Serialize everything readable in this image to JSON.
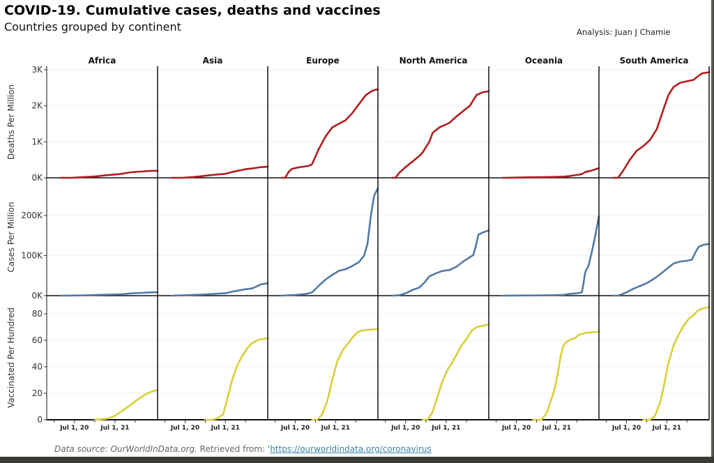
{
  "header": {
    "title": "COVID-19. Cumulative cases, deaths and vaccines",
    "subtitle": "Countries grouped by continent",
    "analysis": "Analysis: Juan J Chamie"
  },
  "footer": {
    "source_text": "Data source: OurWorldInData.org.",
    "retrieved_text": " Retrieved from: '",
    "link_text": "https://ourworldindata.org/coronavirus"
  },
  "chart_data": {
    "type": "line",
    "title": "COVID-19. Cumulative cases, deaths and vaccines",
    "subtitle": "Countries grouped by continent",
    "facets": [
      "Africa",
      "Asia",
      "Europe",
      "North America",
      "Oceania",
      "South America"
    ],
    "x_unit": "months since Jan 1, 2020",
    "x_range": [
      -2.2,
      30.6
    ],
    "x_ticks": [
      {
        "value": 6,
        "label": "Jul 1, 20"
      },
      {
        "value": 18,
        "label": "Jul 1, 21"
      }
    ],
    "x_minor_ticks": [
      0,
      12,
      24
    ],
    "rows": [
      {
        "metric": "deaths",
        "ylabel": "Deaths Per Million",
        "color": "#b01c1c",
        "ylim": [
          0,
          3100
        ],
        "y_ticks": [
          {
            "value": 0,
            "label": "0K"
          },
          {
            "value": 1000,
            "label": "1K"
          },
          {
            "value": 2000,
            "label": "2K"
          },
          {
            "value": 3000,
            "label": "3K"
          }
        ],
        "series": {
          "Africa": [
            [
              2,
              0
            ],
            [
              5,
              0
            ],
            [
              8,
              15
            ],
            [
              11,
              30
            ],
            [
              13,
              45
            ],
            [
              15,
              70
            ],
            [
              18,
              90
            ],
            [
              20,
              110
            ],
            [
              22,
              145
            ],
            [
              24,
              165
            ],
            [
              26,
              175
            ],
            [
              28,
              190
            ],
            [
              30.6,
              195
            ]
          ],
          "Asia": [
            [
              2,
              0
            ],
            [
              5,
              0
            ],
            [
              8,
              20
            ],
            [
              11,
              45
            ],
            [
              13,
              70
            ],
            [
              16,
              95
            ],
            [
              18,
              110
            ],
            [
              20,
              160
            ],
            [
              22,
              200
            ],
            [
              24,
              240
            ],
            [
              26,
              260
            ],
            [
              28,
              290
            ],
            [
              30.6,
              310
            ]
          ],
          "Europe": [
            [
              2,
              0
            ],
            [
              3,
              0
            ],
            [
              4,
              160
            ],
            [
              5,
              250
            ],
            [
              7,
              290
            ],
            [
              10,
              330
            ],
            [
              11,
              380
            ],
            [
              13,
              800
            ],
            [
              15,
              1150
            ],
            [
              17,
              1400
            ],
            [
              19,
              1500
            ],
            [
              21,
              1600
            ],
            [
              23,
              1800
            ],
            [
              25,
              2050
            ],
            [
              27,
              2300
            ],
            [
              29,
              2420
            ],
            [
              30.6,
              2460
            ]
          ],
          "North America": [
            [
              2,
              0
            ],
            [
              3,
              0
            ],
            [
              4,
              130
            ],
            [
              6,
              300
            ],
            [
              8,
              450
            ],
            [
              10,
              600
            ],
            [
              11,
              700
            ],
            [
              13,
              1000
            ],
            [
              14,
              1250
            ],
            [
              16,
              1400
            ],
            [
              18,
              1480
            ],
            [
              19,
              1530
            ],
            [
              21,
              1700
            ],
            [
              23,
              1850
            ],
            [
              25,
              2000
            ],
            [
              27,
              2300
            ],
            [
              29,
              2380
            ],
            [
              30.6,
              2400
            ]
          ],
          "Oceania": [
            [
              2,
              0
            ],
            [
              6,
              5
            ],
            [
              10,
              15
            ],
            [
              14,
              20
            ],
            [
              18,
              25
            ],
            [
              20,
              30
            ],
            [
              22,
              50
            ],
            [
              24,
              80
            ],
            [
              25.5,
              100
            ],
            [
              26.5,
              160
            ],
            [
              28,
              190
            ],
            [
              30.6,
              270
            ]
          ],
          "South America": [
            [
              2,
              0
            ],
            [
              3.5,
              0
            ],
            [
              5,
              200
            ],
            [
              7,
              500
            ],
            [
              9,
              750
            ],
            [
              11,
              880
            ],
            [
              13,
              1050
            ],
            [
              15,
              1350
            ],
            [
              17,
              1900
            ],
            [
              18.5,
              2300
            ],
            [
              20,
              2520
            ],
            [
              22,
              2640
            ],
            [
              24,
              2680
            ],
            [
              26,
              2720
            ],
            [
              27,
              2800
            ],
            [
              28.5,
              2900
            ],
            [
              30.6,
              2930
            ]
          ]
        }
      },
      {
        "metric": "cases",
        "ylabel": "Cases Per Million",
        "color": "#4f7aa6",
        "ylim": [
          0,
          290000
        ],
        "y_ticks": [
          {
            "value": 0,
            "label": "0K"
          },
          {
            "value": 100000,
            "label": "100K"
          },
          {
            "value": 200000,
            "label": "200K"
          }
        ],
        "series": {
          "Africa": [
            [
              2,
              0
            ],
            [
              8,
              500
            ],
            [
              12,
              1500
            ],
            [
              16,
              2500
            ],
            [
              20,
              3500
            ],
            [
              22,
              5000
            ],
            [
              24,
              6500
            ],
            [
              26,
              7000
            ],
            [
              28,
              8000
            ],
            [
              30.6,
              8500
            ]
          ],
          "Asia": [
            [
              2,
              0
            ],
            [
              8,
              1500
            ],
            [
              12,
              3000
            ],
            [
              16,
              5000
            ],
            [
              18,
              6000
            ],
            [
              20,
              10000
            ],
            [
              22,
              13000
            ],
            [
              24,
              16000
            ],
            [
              26,
              18000
            ],
            [
              27,
              22000
            ],
            [
              28.5,
              28000
            ],
            [
              30.6,
              31000
            ]
          ],
          "Europe": [
            [
              2,
              0
            ],
            [
              6,
              2000
            ],
            [
              9,
              4000
            ],
            [
              11,
              8000
            ],
            [
              13,
              25000
            ],
            [
              15,
              40000
            ],
            [
              17,
              52000
            ],
            [
              19,
              62000
            ],
            [
              21,
              66000
            ],
            [
              23,
              74000
            ],
            [
              25,
              84000
            ],
            [
              26.5,
              100000
            ],
            [
              27.5,
              130000
            ],
            [
              28.5,
              200000
            ],
            [
              29.5,
              250000
            ],
            [
              30.6,
              268000
            ]
          ],
          "North America": [
            [
              2,
              0
            ],
            [
              4,
              1000
            ],
            [
              6,
              6000
            ],
            [
              8,
              14000
            ],
            [
              10,
              20000
            ],
            [
              11.5,
              32000
            ],
            [
              13,
              48000
            ],
            [
              15,
              56000
            ],
            [
              17,
              62000
            ],
            [
              19,
              64000
            ],
            [
              21,
              72000
            ],
            [
              23,
              85000
            ],
            [
              25,
              96000
            ],
            [
              26,
              101000
            ],
            [
              26.8,
              125000
            ],
            [
              27.5,
              152000
            ],
            [
              29,
              158000
            ],
            [
              30.6,
              163000
            ]
          ],
          "Oceania": [
            [
              2,
              0
            ],
            [
              10,
              500
            ],
            [
              16,
              1000
            ],
            [
              20,
              2000
            ],
            [
              22,
              4500
            ],
            [
              24,
              6000
            ],
            [
              25.5,
              8000
            ],
            [
              26,
              30000
            ],
            [
              26.5,
              58000
            ],
            [
              27.5,
              75000
            ],
            [
              28.5,
              110000
            ],
            [
              29.5,
              150000
            ],
            [
              30.6,
              198000
            ]
          ],
          "South America": [
            [
              2,
              0
            ],
            [
              3.5,
              0
            ],
            [
              6,
              8000
            ],
            [
              8,
              17000
            ],
            [
              10,
              24000
            ],
            [
              12,
              31000
            ],
            [
              14,
              41000
            ],
            [
              16,
              53000
            ],
            [
              18,
              67000
            ],
            [
              20,
              80000
            ],
            [
              22,
              85000
            ],
            [
              24,
              87000
            ],
            [
              25.5,
              90000
            ],
            [
              26.5,
              108000
            ],
            [
              27.5,
              122000
            ],
            [
              29,
              127000
            ],
            [
              30.6,
              129000
            ]
          ]
        }
      },
      {
        "metric": "vaccinated",
        "ylabel": "Vaccinated Per Hundred",
        "color": "#d9cf36",
        "ylim": [
          0,
          93
        ],
        "y_ticks": [
          {
            "value": 0,
            "label": "0"
          },
          {
            "value": 20,
            "label": "20"
          },
          {
            "value": 40,
            "label": "40"
          },
          {
            "value": 60,
            "label": "60"
          },
          {
            "value": 80,
            "label": "80"
          }
        ],
        "series": {
          "Africa": [
            [
              12,
              0
            ],
            [
              14,
              0.3
            ],
            [
              16,
              1
            ],
            [
              18,
              3
            ],
            [
              20,
              6.5
            ],
            [
              22,
              10
            ],
            [
              24,
              14
            ],
            [
              25.5,
              16.5
            ],
            [
              27,
              19
            ],
            [
              28.5,
              21
            ],
            [
              30.6,
              22.5
            ]
          ],
          "Asia": [
            [
              12,
              0
            ],
            [
              14,
              0
            ],
            [
              15.5,
              1
            ],
            [
              17.3,
              4
            ],
            [
              18.5,
              15
            ],
            [
              20,
              30
            ],
            [
              21.5,
              41
            ],
            [
              23,
              48
            ],
            [
              24.5,
              54
            ],
            [
              26,
              58
            ],
            [
              28,
              60.5
            ],
            [
              30.6,
              61.5
            ]
          ],
          "Europe": [
            [
              11,
              0
            ],
            [
              12.5,
              0
            ],
            [
              14,
              4
            ],
            [
              15.5,
              14
            ],
            [
              17,
              30
            ],
            [
              18.5,
              44
            ],
            [
              20,
              52
            ],
            [
              21.5,
              57
            ],
            [
              23,
              62
            ],
            [
              24.5,
              66
            ],
            [
              26,
              67.5
            ],
            [
              28,
              68
            ],
            [
              30.6,
              68.5
            ]
          ],
          "North America": [
            [
              11,
              0
            ],
            [
              12.5,
              0
            ],
            [
              14,
              6
            ],
            [
              15.5,
              18
            ],
            [
              17,
              30
            ],
            [
              18.5,
              38
            ],
            [
              19.5,
              42
            ],
            [
              21,
              49
            ],
            [
              22.5,
              56
            ],
            [
              24,
              61
            ],
            [
              25.5,
              67
            ],
            [
              27,
              70
            ],
            [
              29,
              71
            ],
            [
              30.6,
              72
            ]
          ],
          "Oceania": [
            [
              11,
              0
            ],
            [
              13.5,
              0
            ],
            [
              15,
              5
            ],
            [
              16.5,
              16
            ],
            [
              17.5,
              24
            ],
            [
              18.5,
              37
            ],
            [
              19.2,
              48
            ],
            [
              20,
              56
            ],
            [
              21,
              59
            ],
            [
              22.5,
              61
            ],
            [
              23.5,
              61.5
            ],
            [
              24.5,
              64
            ],
            [
              26.5,
              65.5
            ],
            [
              30.6,
              66.5
            ]
          ],
          "South America": [
            [
              11,
              0
            ],
            [
              13,
              0
            ],
            [
              14.5,
              3
            ],
            [
              16,
              13
            ],
            [
              17,
              24
            ],
            [
              18.5,
              43
            ],
            [
              20,
              56
            ],
            [
              21.5,
              64
            ],
            [
              23,
              71
            ],
            [
              24.5,
              76
            ],
            [
              26,
              79
            ],
            [
              27,
              82
            ],
            [
              28.5,
              84
            ],
            [
              30.6,
              85
            ]
          ]
        }
      }
    ]
  }
}
